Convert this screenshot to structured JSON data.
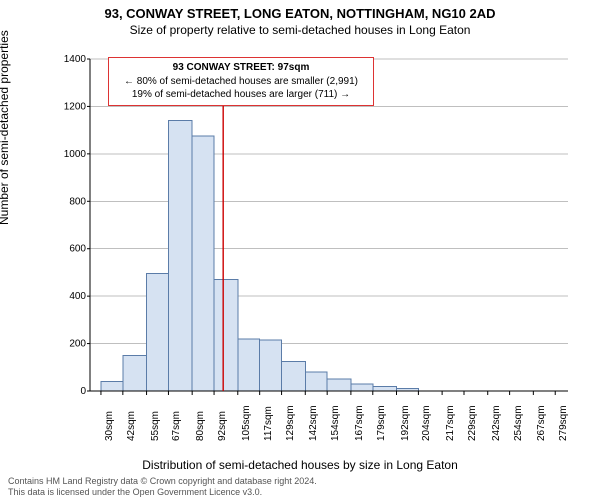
{
  "title_main": "93, CONWAY STREET, LONG EATON, NOTTINGHAM, NG10 2AD",
  "title_sub": "Size of property relative to semi-detached houses in Long Eaton",
  "y_label": "Number of semi-detached properties",
  "x_label": "Distribution of semi-detached houses by size in Long Eaton",
  "footer_line1": "Contains HM Land Registry data © Crown copyright and database right 2024.",
  "footer_line2": "This data is licensed under the Open Government Licence v3.0.",
  "callout": {
    "title": "93 CONWAY STREET: 97sqm",
    "line_smaller": "← 80% of semi-detached houses are smaller (2,991)",
    "line_larger": "19% of semi-detached houses are larger (711) →"
  },
  "chart": {
    "type": "histogram",
    "x_ticks": [
      30,
      42,
      55,
      67,
      80,
      92,
      105,
      117,
      129,
      142,
      154,
      167,
      179,
      192,
      204,
      217,
      229,
      242,
      254,
      267,
      279
    ],
    "x_tick_suffix": "sqm",
    "y_ticks": [
      0,
      200,
      400,
      600,
      800,
      1000,
      1200,
      1400
    ],
    "ylim": [
      0,
      1400
    ],
    "xlim": [
      24,
      286
    ],
    "bars": [
      {
        "x0": 30,
        "x1": 42,
        "y": 40
      },
      {
        "x0": 42,
        "x1": 55,
        "y": 150
      },
      {
        "x0": 55,
        "x1": 67,
        "y": 495
      },
      {
        "x0": 67,
        "x1": 80,
        "y": 1140
      },
      {
        "x0": 80,
        "x1": 92,
        "y": 1075
      },
      {
        "x0": 92,
        "x1": 105,
        "y": 470
      },
      {
        "x0": 105,
        "x1": 117,
        "y": 220
      },
      {
        "x0": 117,
        "x1": 129,
        "y": 215
      },
      {
        "x0": 129,
        "x1": 142,
        "y": 125
      },
      {
        "x0": 142,
        "x1": 154,
        "y": 80
      },
      {
        "x0": 154,
        "x1": 167,
        "y": 50
      },
      {
        "x0": 167,
        "x1": 179,
        "y": 30
      },
      {
        "x0": 179,
        "x1": 192,
        "y": 20
      },
      {
        "x0": 192,
        "x1": 204,
        "y": 10
      }
    ],
    "marker_x": 97,
    "bar_fill": "#d6e2f2",
    "bar_stroke": "#5b7ca8",
    "grid_color": "#bfbfbf",
    "axis_color": "#000000",
    "marker_color": "#cc0000",
    "background_color": "#ffffff"
  }
}
